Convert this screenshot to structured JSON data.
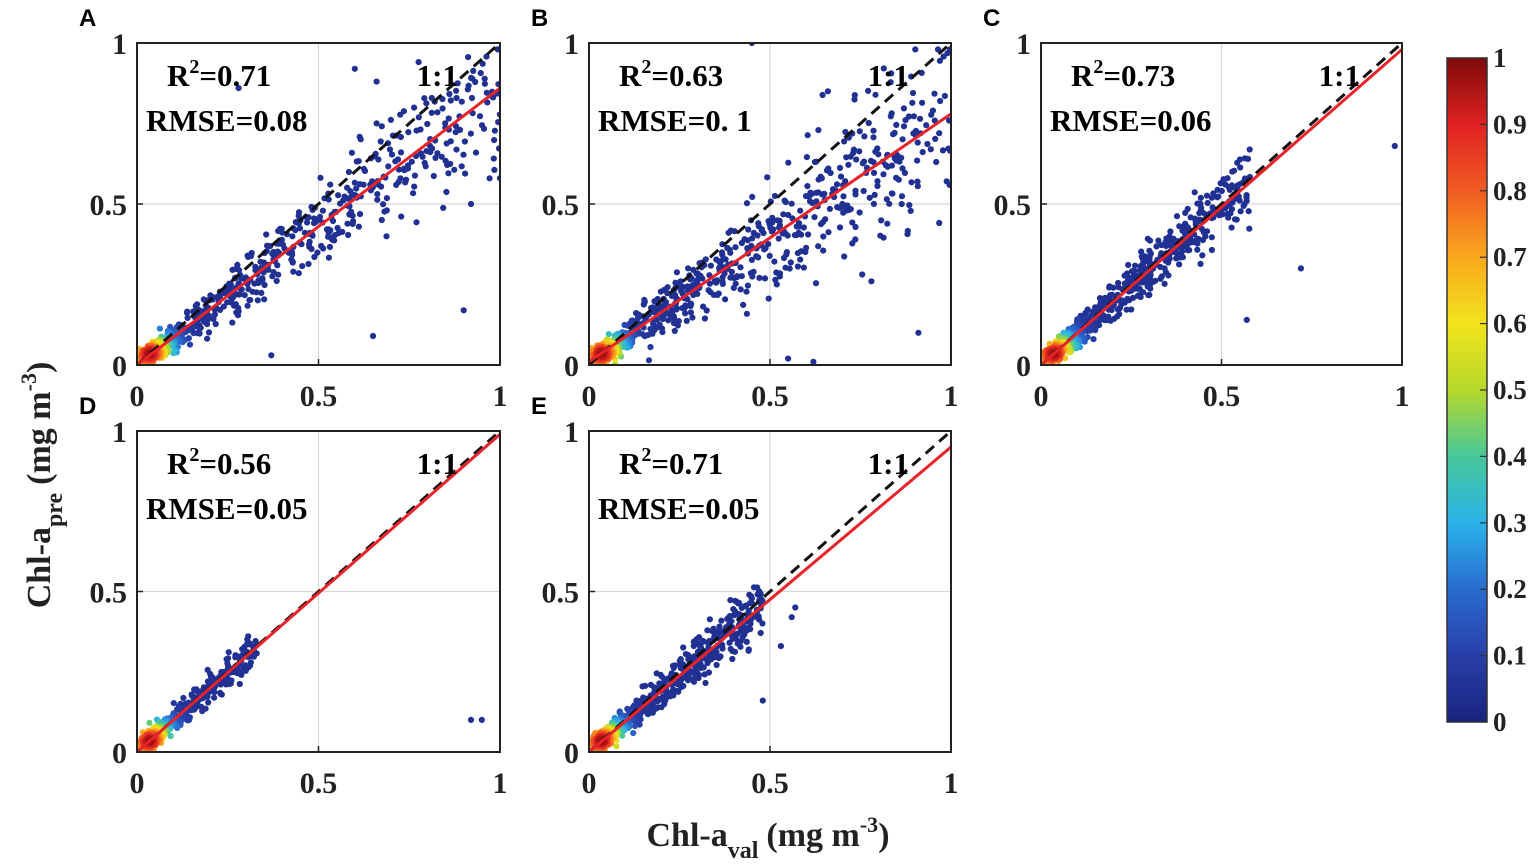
{
  "figure": {
    "ylabel": {
      "main": "Chl-a",
      "sub": "pre",
      "units": "(mg m",
      "exp": "-3",
      "close": ")"
    },
    "xlabel": {
      "main": "Chl-a",
      "sub": "val",
      "units": "(mg m",
      "exp": "-3",
      "close": ")"
    }
  },
  "colorbar": {
    "ticks": [
      "0",
      "0.1",
      "0.2",
      "0.3",
      "0.4",
      "0.5",
      "0.6",
      "0.7",
      "0.8",
      "0.9",
      "1"
    ],
    "range": [
      0,
      1
    ],
    "colors": [
      "#1a237e",
      "#283fa8",
      "#2a6bd0",
      "#2ab3e8",
      "#47c79a",
      "#b6d82a",
      "#f2e41c",
      "#f9a81e",
      "#f25c22",
      "#e02121",
      "#7d0a0a"
    ]
  },
  "chart_data": [
    {
      "type": "scatter",
      "panel": "A",
      "xlim": [
        0,
        1
      ],
      "ylim": [
        0,
        1
      ],
      "xticks": [
        "0",
        "0.5",
        "1"
      ],
      "yticks": [
        "0",
        "0.5",
        "1"
      ],
      "r2_prefix": "R",
      "r2_exp": "2",
      "r2_value": "=0.71",
      "rmse": "RMSE=0.08",
      "one_to_one": "1:1",
      "fit": {
        "slope": 0.86,
        "intercept": 0.0
      },
      "spread": 0.5,
      "xmax": 1.0,
      "n": 700,
      "seed": 11,
      "outliers": [
        [
          0.6,
          0.92
        ],
        [
          0.66,
          0.88
        ],
        [
          0.28,
          0.86
        ],
        [
          0.92,
          0.5
        ],
        [
          0.9,
          0.17
        ],
        [
          1.0,
          0.58
        ],
        [
          0.65,
          0.09
        ],
        [
          0.37,
          0.03
        ]
      ]
    },
    {
      "type": "scatter",
      "panel": "B",
      "xlim": [
        0,
        1
      ],
      "ylim": [
        0,
        1
      ],
      "xticks": [
        "0",
        "0.5",
        "1"
      ],
      "yticks": [
        "0",
        "0.5",
        "1"
      ],
      "r2_prefix": "R",
      "r2_exp": "2",
      "r2_value": "=0.63",
      "rmse": "RMSE=0. 1",
      "one_to_one": "1:1",
      "fit": {
        "slope": 0.77,
        "intercept": 0.01
      },
      "spread": 0.6,
      "xmax": 1.0,
      "n": 750,
      "seed": 23,
      "outliers": [
        [
          0.45,
          1.0
        ],
        [
          0.66,
          0.85
        ],
        [
          0.97,
          0.82
        ],
        [
          0.95,
          0.79
        ],
        [
          0.91,
          0.1
        ],
        [
          0.78,
          0.26
        ],
        [
          0.62,
          0.01
        ],
        [
          0.55,
          0.02
        ]
      ]
    },
    {
      "type": "scatter",
      "panel": "C",
      "xlim": [
        0,
        1
      ],
      "ylim": [
        0,
        1
      ],
      "xticks": [
        "0",
        "0.5",
        "1"
      ],
      "yticks": [
        "0",
        "0.5",
        "1"
      ],
      "r2_prefix": "R",
      "r2_exp": "2",
      "r2_value": "=0.73",
      "rmse": "RMSE=0.06",
      "one_to_one": "1:1",
      "fit": {
        "slope": 0.98,
        "intercept": 0.0
      },
      "spread": 0.38,
      "xmax": 0.58,
      "n": 700,
      "seed": 37,
      "outliers": [
        [
          0.72,
          0.3
        ],
        [
          0.57,
          0.14
        ],
        [
          0.98,
          0.68
        ]
      ]
    },
    {
      "type": "scatter",
      "panel": "D",
      "xlim": [
        0,
        1
      ],
      "ylim": [
        0,
        1
      ],
      "xticks": [
        "0",
        "0.5",
        "1"
      ],
      "yticks": [
        "0",
        "0.5",
        "1"
      ],
      "r2_prefix": "R",
      "r2_exp": "2",
      "r2_value": "=0.56",
      "rmse": "RMSE=0.05",
      "one_to_one": "1:1",
      "fit": {
        "slope": 0.99,
        "intercept": 0.0
      },
      "spread": 0.25,
      "xmax": 0.33,
      "n": 450,
      "seed": 51,
      "outliers": [
        [
          0.92,
          0.1
        ],
        [
          0.95,
          0.1
        ]
      ]
    },
    {
      "type": "scatter",
      "panel": "E",
      "xlim": [
        0,
        1
      ],
      "ylim": [
        0,
        1
      ],
      "xticks": [
        "0",
        "0.5",
        "1"
      ],
      "yticks": [
        "0",
        "0.5",
        "1"
      ],
      "r2_prefix": "R",
      "r2_exp": "2",
      "r2_value": "=0.71",
      "rmse": "RMSE=0.05",
      "one_to_one": "1:1",
      "fit": {
        "slope": 0.95,
        "intercept": 0.0
      },
      "spread": 0.32,
      "xmax": 0.48,
      "n": 700,
      "seed": 67,
      "outliers": [
        [
          0.57,
          0.45
        ],
        [
          0.56,
          0.42
        ],
        [
          0.53,
          0.33
        ],
        [
          0.48,
          0.16
        ]
      ]
    }
  ]
}
